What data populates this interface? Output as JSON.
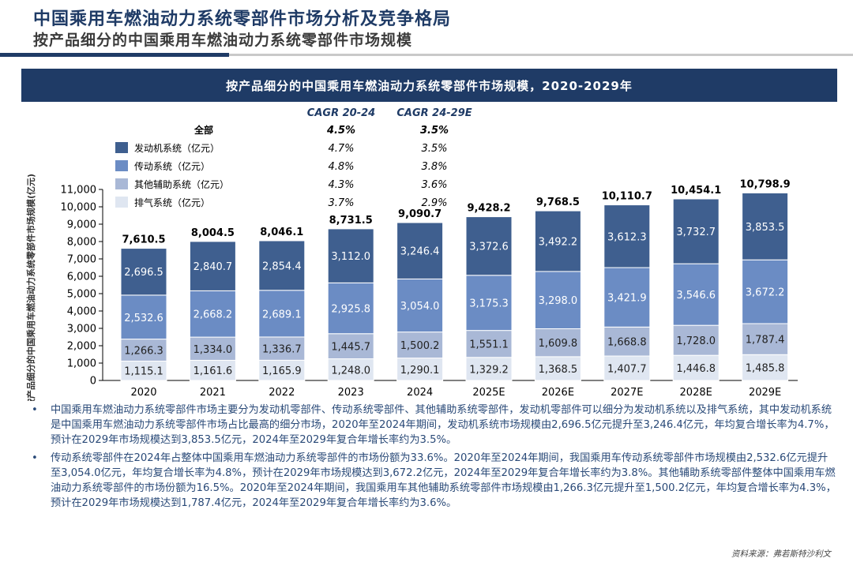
{
  "header": {
    "title": "中国乘用车燃油动力系统零部件市场分析及竞争格局",
    "subtitle": "按产品细分的中国乘用车燃油动力系统零部件市场规模"
  },
  "colors": {
    "navy": "#1f3b66",
    "engine": "#3f5f8f",
    "transmission": "#6b8cc4",
    "aux": "#a9b8d6",
    "exhaust": "#dfe6f1"
  },
  "chart_data": {
    "type": "bar",
    "stacked": true,
    "title": "按产品细分的中国乘用车燃油动力系统零部件市场规模，2020-2029年",
    "ylabel": "按产品细分的中国乘用车燃油动力系统零部件市场规模(亿元)",
    "xlabel": "",
    "ylim": [
      0,
      11000
    ],
    "yticks": [
      "0",
      "1,000",
      "2,000",
      "3,000",
      "4,000",
      "5,000",
      "6,000",
      "7,000",
      "8,000",
      "9,000",
      "10,000",
      "11,000"
    ],
    "categories": [
      "2020",
      "2021",
      "2022",
      "2023",
      "2024",
      "2025E",
      "2026E",
      "2027E",
      "2028E",
      "2029E"
    ],
    "series": [
      {
        "name": "排气系统（亿元）",
        "values": [
          1115.1,
          1161.6,
          1165.9,
          1248.0,
          1290.1,
          1329.2,
          1368.5,
          1407.7,
          1446.8,
          1485.8
        ],
        "labels": [
          "1,115.1",
          "1,161.6",
          "1,165.9",
          "1,248.0",
          "1,290.1",
          "1,329.2",
          "1,368.5",
          "1,407.7",
          "1,446.8",
          "1,485.8"
        ]
      },
      {
        "name": "其他辅助系统（亿元）",
        "values": [
          1266.3,
          1334.0,
          1336.7,
          1445.7,
          1500.2,
          1551.1,
          1609.8,
          1668.8,
          1728.0,
          1787.4
        ],
        "labels": [
          "1,266.3",
          "1,334.0",
          "1,336.7",
          "1,445.7",
          "1,500.2",
          "1,551.1",
          "1,609.8",
          "1,668.8",
          "1,728.0",
          "1,787.4"
        ]
      },
      {
        "name": "传动系统（亿元）",
        "values": [
          2532.6,
          2668.2,
          2689.1,
          2925.8,
          3054.0,
          3175.3,
          3298.0,
          3421.9,
          3546.6,
          3672.2
        ],
        "labels": [
          "2,532.6",
          "2,668.2",
          "2,689.1",
          "2,925.8",
          "3,054.0",
          "3,175.3",
          "3,298.0",
          "3,421.9",
          "3,546.6",
          "3,672.2"
        ]
      },
      {
        "name": "发动机系统（亿元）",
        "values": [
          2696.5,
          2840.7,
          2854.4,
          3112.0,
          3246.4,
          3372.6,
          3492.2,
          3612.3,
          3732.7,
          3853.5
        ],
        "labels": [
          "2,696.5",
          "2,840.7",
          "2,854.4",
          "3,112.0",
          "3,246.4",
          "3,372.6",
          "3,492.2",
          "3,612.3",
          "3,732.7",
          "3,853.5"
        ]
      }
    ],
    "totals": [
      7610.5,
      8004.5,
      8046.1,
      8731.5,
      9090.7,
      9428.2,
      9768.5,
      10110.7,
      10454.1,
      10798.9
    ],
    "total_labels": [
      "7,610.5",
      "8,004.5",
      "8,046.1",
      "8,731.5",
      "9,090.7",
      "9,428.2",
      "9,768.5",
      "10,110.7",
      "10,454.1",
      "10,798.9"
    ],
    "cagr_table": {
      "headers": [
        "CAGR 20-24",
        "CAGR 24-29E"
      ],
      "rows": [
        {
          "label": "全部",
          "cagr1": "4.5%",
          "cagr2": "3.5%"
        },
        {
          "label": "发动机系统（亿元）",
          "cagr1": "4.7%",
          "cagr2": "3.5%"
        },
        {
          "label": "传动系统（亿元）",
          "cagr1": "4.8%",
          "cagr2": "3.8%"
        },
        {
          "label": "其他辅助系统（亿元）",
          "cagr1": "4.3%",
          "cagr2": "3.6%"
        },
        {
          "label": "排气系统（亿元）",
          "cagr1": "3.7%",
          "cagr2": "2.9%"
        }
      ]
    }
  },
  "bullets": [
    "中国乘用车燃油动力系统零部件市场主要分为发动机零部件、传动系统零部件、其他辅助系统零部件，发动机零部件可以细分为发动机系统以及排气系统，其中发动机系统是中国乘用车燃油动力系统零部件市场占比最高的细分市场，2020年至2024年期间，发动机系统市场规模由2,696.5亿元提升至3,246.4亿元，年均复合增长率为4.7%，预计在2029年市场规模达到3,853.5亿元，2024年至2029年复合年增长率约为3.5%。",
    "传动系统零部件在2024年占整体中国乘用车燃油动力系统零部件的市场份额为33.6%。2020年至2024年期间，我国乘用车传动系统零部件市场规模由2,532.6亿元提升至3,054.0亿元，年均复合增长率为4.8%，预计在2029年市场规模达到3,672.2亿元，2024年至2029年复合年增长率约为3.8%。其他辅助系统零部件整体中国乘用车燃油动力系统零部件的市场份额为16.5%。2020年至2024年期间，我国乘用车其他辅助系统零部件市场规模由1,266.3亿元提升至1,500.2亿元，年均复合增长率为4.3%，预计在2029年市场规模达到1,787.4亿元，2024年至2029年复合年增长率约为3.6%。"
  ],
  "source": "资料来源：弗若斯特沙利文"
}
